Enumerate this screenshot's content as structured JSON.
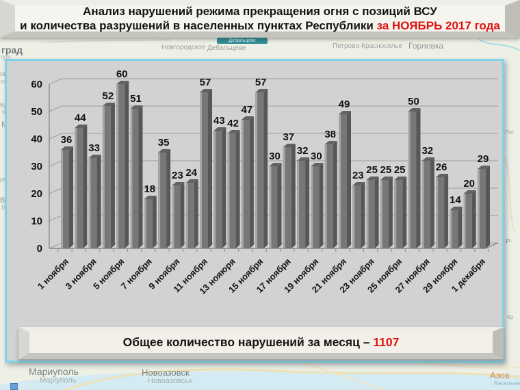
{
  "title_banner": {
    "line1": "Анализ нарушений режима прекращения огня с позиций ВСУ",
    "line2": "и количества разрушений в населенных пунктах Республики",
    "line2_highlight": "за НОЯБРЬ 2017 года"
  },
  "footer_banner": {
    "label": "Общее количество нарушений за месяц –",
    "value": "1107"
  },
  "chart_data": {
    "type": "bar",
    "title": "Анализ нарушений режима прекращения огня с позиций ВСУ и количества разрушений в населенных пунктах Республики за НОЯБРЬ 2017 года",
    "values": [
      36,
      44,
      33,
      52,
      60,
      51,
      18,
      35,
      23,
      24,
      57,
      43,
      42,
      47,
      57,
      30,
      37,
      32,
      30,
      38,
      49,
      23,
      25,
      25,
      25,
      50,
      32,
      26,
      14,
      20,
      29
    ],
    "tick_labels": [
      "1 ноября",
      "3 ноября",
      "5 ноября",
      "7 ноября",
      "9 ноября",
      "11 ноября",
      "13 нояюря",
      "15 ноября",
      "17 ноября",
      "19 ноября",
      "21 ноября",
      "23 ноября",
      "25 ноября",
      "27 ноября",
      "29 ноября",
      "1 декабря"
    ],
    "tick_every": 2,
    "yticks": [
      0,
      10,
      20,
      30,
      40,
      50,
      60
    ],
    "ylim": [
      0,
      60
    ],
    "grid": true,
    "legend": "none",
    "total": 1107
  },
  "map": {
    "labels": [
      {
        "text": "град"
      },
      {
        "text": "гра"
      },
      {
        "text": "Новгородское"
      },
      {
        "text": "Горловка"
      },
      {
        "text": "Дебальцеве"
      },
      {
        "text": "Дебальцеве"
      },
      {
        "text": "Петрово-Красноселье"
      },
      {
        "text": "овк,"
      },
      {
        "text": "ка"
      },
      {
        "text": "Кра"
      },
      {
        "text": "Кр"
      },
      {
        "text": "М"
      },
      {
        "text": "ро"
      },
      {
        "text": "Вол"
      },
      {
        "text": "Во"
      },
      {
        "text": "Пет"
      },
      {
        "text": "Р-"
      },
      {
        "text": "Кр"
      },
      {
        "text": "Мариуполь"
      },
      {
        "text": "Маріуполь"
      },
      {
        "text": "Новоазовск"
      },
      {
        "text": "Новоазовськ"
      },
      {
        "text": "Азов"
      },
      {
        "text": "Кагальни"
      }
    ]
  },
  "colors": {
    "accent_red": "#df1111",
    "panel_border_cyan": "#7fd2e7",
    "panel_bg": "#d2d2d2",
    "bar_front": "#777777",
    "bar_side": "#575757",
    "bar_top": "#626262",
    "bar_highlight": "#a6a6a6",
    "sea": "#d5ebf3"
  }
}
